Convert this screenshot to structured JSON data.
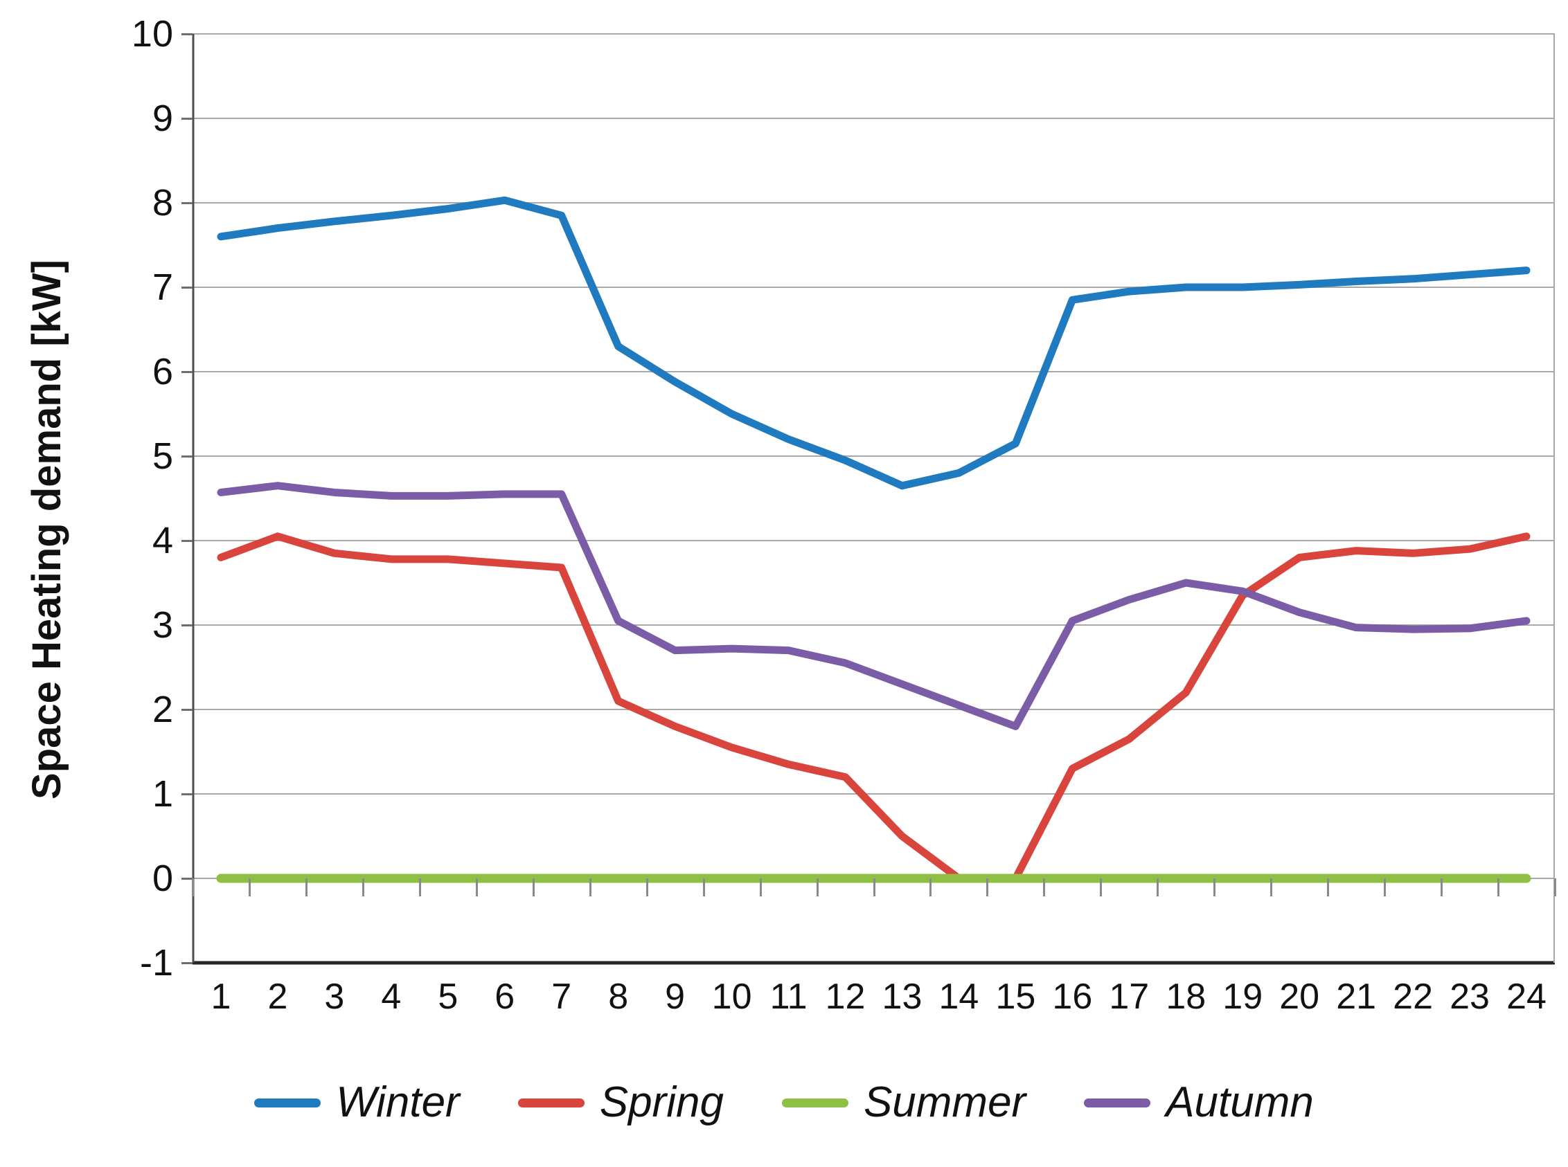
{
  "axis": {
    "y_title": "Space Heating demand [kW]",
    "y_ticks": [
      10,
      9,
      8,
      7,
      6,
      5,
      4,
      3,
      2,
      1,
      0,
      -1
    ],
    "x_ticks": [
      "1",
      "2",
      "3",
      "4",
      "5",
      "6",
      "7",
      "8",
      "9",
      "10",
      "11",
      "12",
      "13",
      "14",
      "15",
      "16",
      "17",
      "18",
      "19",
      "20",
      "21",
      "22",
      "23",
      "24"
    ]
  },
  "colors": {
    "winter": "#1F7AC0",
    "spring": "#D9453D",
    "summer": "#8EC043",
    "autumn": "#7B5CA7",
    "gridline": "#A8A8A8",
    "axis_dark": "#262626",
    "axis_left": "#4D4D4D"
  },
  "chart_data": {
    "type": "line",
    "x": [
      1,
      2,
      3,
      4,
      5,
      6,
      7,
      8,
      9,
      10,
      11,
      12,
      13,
      14,
      15,
      16,
      17,
      18,
      19,
      20,
      21,
      22,
      23,
      24
    ],
    "xlabel": "",
    "ylabel": "Space Heating demand [kW]",
    "ylim": [
      -1,
      10
    ],
    "grid": true,
    "legend_position": "bottom",
    "series": [
      {
        "name": "Winter",
        "color": "#1F7AC0",
        "values": [
          7.6,
          7.7,
          7.78,
          7.85,
          7.93,
          8.03,
          7.85,
          6.3,
          5.88,
          5.5,
          5.2,
          4.95,
          4.65,
          4.8,
          5.15,
          6.85,
          6.95,
          7.0,
          7.0,
          7.03,
          7.07,
          7.1,
          7.15,
          7.2
        ]
      },
      {
        "name": "Spring",
        "color": "#D9453D",
        "values": [
          3.8,
          4.05,
          3.85,
          3.78,
          3.78,
          3.73,
          3.68,
          2.1,
          1.8,
          1.55,
          1.35,
          1.2,
          0.5,
          0.0,
          0.0,
          1.3,
          1.65,
          2.2,
          3.35,
          3.8,
          3.88,
          3.85,
          3.9,
          4.05
        ]
      },
      {
        "name": "Summer",
        "color": "#8EC043",
        "values": [
          0,
          0,
          0,
          0,
          0,
          0,
          0,
          0,
          0,
          0,
          0,
          0,
          0,
          0,
          0,
          0,
          0,
          0,
          0,
          0,
          0,
          0,
          0,
          0
        ]
      },
      {
        "name": "Autumn",
        "color": "#7B5CA7",
        "values": [
          4.57,
          4.65,
          4.57,
          4.53,
          4.53,
          4.55,
          4.55,
          3.05,
          2.7,
          2.72,
          2.7,
          2.55,
          2.3,
          2.05,
          1.8,
          3.05,
          3.3,
          3.5,
          3.4,
          3.15,
          2.97,
          2.95,
          2.96,
          3.05
        ]
      }
    ]
  }
}
